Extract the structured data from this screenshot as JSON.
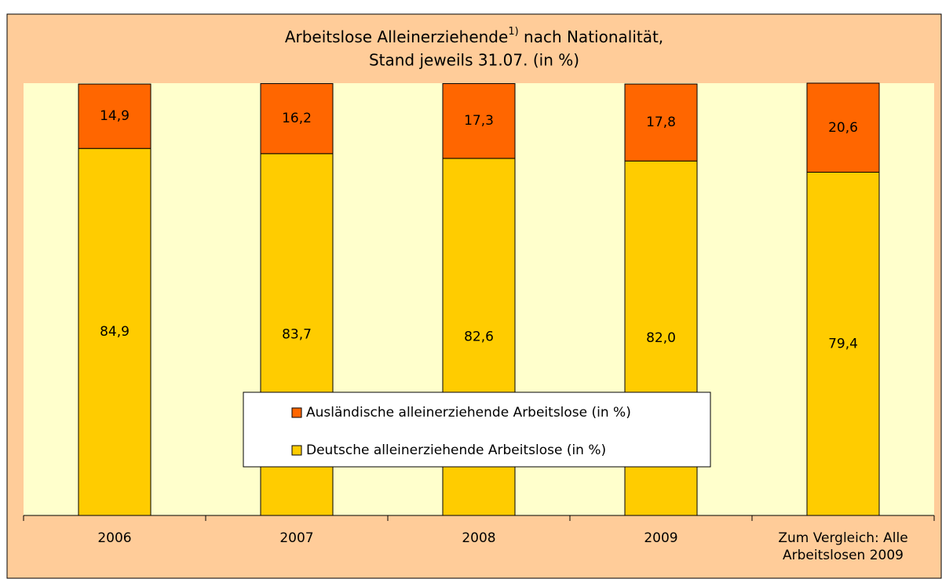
{
  "chart_data": {
    "type": "stacked_bar",
    "title": {
      "line1": "Arbeitslose Alleinerziehende",
      "footnote": "1)",
      "line1_rest": " nach Nationalität,",
      "line2": "Stand jeweils 31.07.  (in %)"
    },
    "categories": [
      "2006",
      "2007",
      "2008",
      "2009",
      "Zum Vergleich: Alle Arbeitslosen 2009"
    ],
    "series": [
      {
        "name": "Deutsche alleinerziehende Arbeitslose (in %)",
        "color": "#ffcc00",
        "values": [
          84.9,
          83.7,
          82.6,
          82.0,
          79.4
        ],
        "value_labels": [
          "84,9",
          "83,7",
          "82,6",
          "82,0",
          "79,4"
        ]
      },
      {
        "name": "Ausländische alleinerziehende Arbeitslose (in %)",
        "color": "#ff6600",
        "values": [
          14.9,
          16.2,
          17.3,
          17.8,
          20.6
        ],
        "value_labels": [
          "14,9",
          "16,2",
          "17,3",
          "17,8",
          "20,6"
        ]
      }
    ],
    "ylim": [
      0,
      100
    ]
  }
}
